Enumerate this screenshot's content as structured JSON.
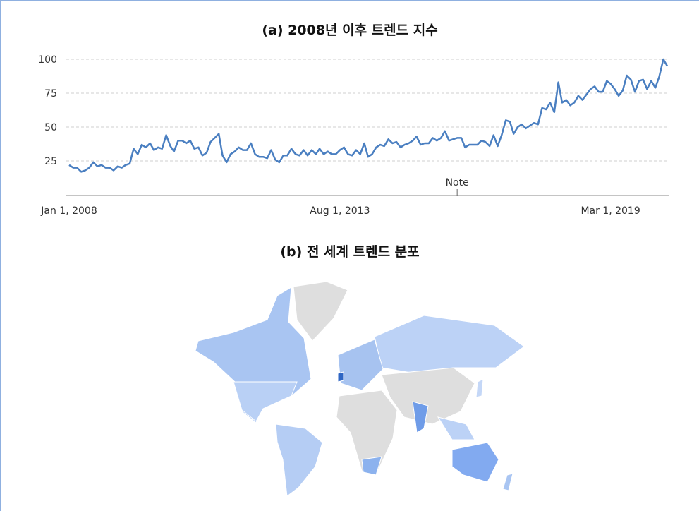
{
  "chart_data": {
    "type": "line",
    "title": "(a) 2008년 이후 트렌드 지수",
    "x": [
      "2008-01-01",
      "2008-02-01",
      "2008-03-01",
      "2008-04-01",
      "2008-05-01",
      "2008-06-01",
      "2008-07-01",
      "2008-08-01",
      "2008-09-01",
      "2008-10-01",
      "2008-11-01",
      "2008-12-01",
      "2009-01-01",
      "2009-02-01",
      "2009-03-01",
      "2009-04-01",
      "2009-05-01",
      "2009-06-01",
      "2009-07-01",
      "2009-08-01",
      "2009-09-01",
      "2009-10-01",
      "2009-11-01",
      "2009-12-01",
      "2010-01-01",
      "2010-02-01",
      "2010-03-01",
      "2010-04-01",
      "2010-05-01",
      "2010-06-01",
      "2010-07-01",
      "2010-08-01",
      "2010-09-01",
      "2010-10-01",
      "2010-11-01",
      "2010-12-01",
      "2011-01-01",
      "2011-02-01",
      "2011-03-01",
      "2011-04-01",
      "2011-05-01",
      "2011-06-01",
      "2011-07-01",
      "2011-08-01",
      "2011-09-01",
      "2011-10-01",
      "2011-11-01",
      "2011-12-01",
      "2012-01-01",
      "2012-02-01",
      "2012-03-01",
      "2012-04-01",
      "2012-05-01",
      "2012-06-01",
      "2012-07-01",
      "2012-08-01",
      "2012-09-01",
      "2012-10-01",
      "2012-11-01",
      "2012-12-01",
      "2013-01-01",
      "2013-02-01",
      "2013-03-01",
      "2013-04-01",
      "2013-05-01",
      "2013-06-01",
      "2013-07-01",
      "2013-08-01",
      "2013-09-01",
      "2013-10-01",
      "2013-11-01",
      "2013-12-01",
      "2014-01-01",
      "2014-02-01",
      "2014-03-01",
      "2014-04-01",
      "2014-05-01",
      "2014-06-01",
      "2014-07-01",
      "2014-08-01",
      "2014-09-01",
      "2014-10-01",
      "2014-11-01",
      "2014-12-01",
      "2015-01-01",
      "2015-02-01",
      "2015-03-01",
      "2015-04-01",
      "2015-05-01",
      "2015-06-01",
      "2015-07-01",
      "2015-08-01",
      "2015-09-01",
      "2015-10-01",
      "2015-11-01",
      "2015-12-01",
      "2016-01-01",
      "2016-02-01",
      "2016-03-01",
      "2016-04-01",
      "2016-05-01",
      "2016-06-01",
      "2016-07-01",
      "2016-08-01",
      "2016-09-01",
      "2016-10-01",
      "2016-11-01",
      "2016-12-01",
      "2017-01-01",
      "2017-02-01",
      "2017-03-01",
      "2017-04-01",
      "2017-05-01",
      "2017-06-01",
      "2017-07-01",
      "2017-08-01",
      "2017-09-01",
      "2017-10-01",
      "2017-11-01",
      "2017-12-01",
      "2018-01-01",
      "2018-02-01",
      "2018-03-01",
      "2018-04-01",
      "2018-05-01",
      "2018-06-01",
      "2018-07-01",
      "2018-08-01",
      "2018-09-01",
      "2018-10-01",
      "2018-11-01",
      "2018-12-01",
      "2019-01-01",
      "2019-02-01",
      "2019-03-01",
      "2019-04-01",
      "2019-05-01",
      "2019-06-01",
      "2019-07-01",
      "2019-08-01",
      "2019-09-01",
      "2019-10-01",
      "2019-11-01",
      "2019-12-01",
      "2020-01-01",
      "2020-02-01",
      "2020-03-01",
      "2020-04-01",
      "2020-05-01"
    ],
    "series": [
      {
        "color": "#4a7fc1",
        "values": [
          22,
          20,
          20,
          17,
          18,
          20,
          24,
          21,
          22,
          20,
          20,
          18,
          21,
          20,
          22,
          23,
          34,
          30,
          37,
          35,
          38,
          33,
          35,
          34,
          44,
          36,
          32,
          40,
          40,
          38,
          40,
          34,
          35,
          29,
          31,
          39,
          42,
          45,
          29,
          24,
          30,
          32,
          35,
          33,
          33,
          38,
          30,
          28,
          28,
          27,
          33,
          26,
          24,
          29,
          29,
          34,
          30,
          29,
          33,
          29,
          33,
          30,
          34,
          30,
          32,
          30,
          30,
          33,
          35,
          30,
          29,
          33,
          30,
          38,
          28,
          30,
          35,
          37,
          36,
          41,
          38,
          39,
          35,
          37,
          38,
          40,
          43,
          37,
          38,
          38,
          42,
          40,
          42,
          47,
          40,
          41,
          42,
          42,
          35,
          37,
          37,
          37,
          40,
          39,
          36,
          44,
          36,
          44,
          55,
          54,
          45,
          50,
          52,
          49,
          51,
          53,
          52,
          64,
          63,
          68,
          61,
          83,
          68,
          70,
          66,
          68,
          73,
          70,
          74,
          78,
          80,
          76,
          76,
          84,
          82,
          78,
          73,
          77,
          88,
          85,
          76,
          84,
          85,
          78,
          84,
          79,
          87,
          100,
          95
        ]
      }
    ],
    "xlim": [
      "2008-01-01",
      "2020-05-01"
    ],
    "xticks": [
      {
        "value": "2008-01-01",
        "label": "Jan 1, 2008"
      },
      {
        "value": "2013-08-01",
        "label": "Aug 1, 2013"
      },
      {
        "value": "2019-03-01",
        "label": "Mar 1, 2019"
      }
    ],
    "ylim": [
      0,
      100
    ],
    "yticks": [
      25,
      50,
      75,
      100
    ],
    "grid": true,
    "annotation": {
      "text": "Note",
      "x": "2016-01-01"
    }
  },
  "map": {
    "title": "(b) 전 세계 트렌드 분포"
  }
}
